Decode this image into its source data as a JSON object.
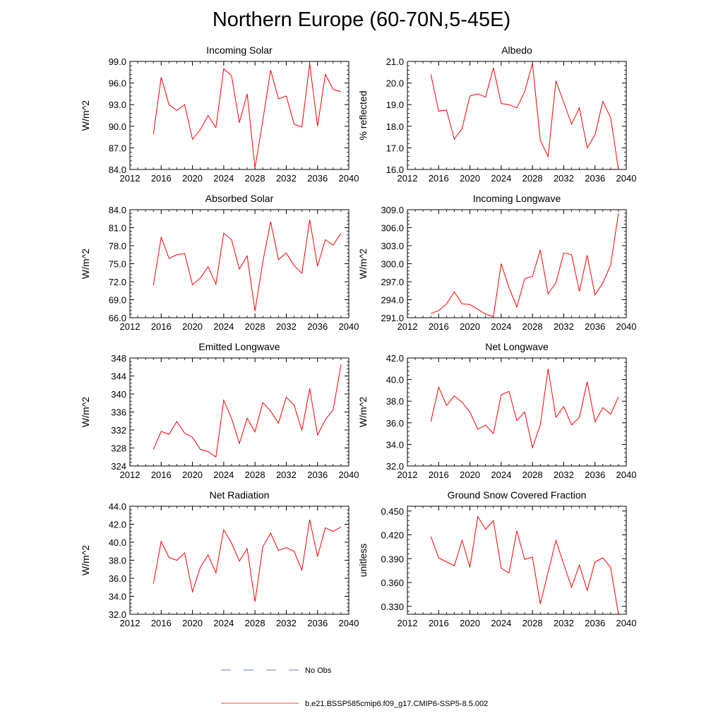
{
  "title": "Northern Europe (60-70N,5-45E)",
  "colors": {
    "model": "#ff0000",
    "obs": "#3355cc",
    "axis": "#000000"
  },
  "legend": [
    {
      "label": "No Obs",
      "style": "dashed",
      "color": "#3355cc"
    },
    {
      "label": "b.e21.BSSP585cmip6.f09_g17.CMIP6-SSP5-8.5.002",
      "style": "solid",
      "color": "#ff0000"
    }
  ],
  "chart_data": [
    {
      "type": "line",
      "title": "Incoming Solar",
      "ylabel": "W/m^2",
      "xlim": [
        2012,
        2040
      ],
      "xticks": [
        "2012",
        "2016",
        "2020",
        "2024",
        "2028",
        "2032",
        "2036",
        "2040"
      ],
      "ylim": [
        84.0,
        99.0
      ],
      "yticks": [
        "84.0",
        "87.0",
        "90.0",
        "93.0",
        "96.0",
        "99.0"
      ],
      "x": [
        2015,
        2016,
        2017,
        2018,
        2019,
        2020,
        2021,
        2022,
        2023,
        2024,
        2025,
        2026,
        2027,
        2028,
        2029,
        2030,
        2031,
        2032,
        2033,
        2034,
        2035,
        2036,
        2037,
        2038,
        2039
      ],
      "values": [
        88.9,
        96.8,
        93.0,
        92.2,
        93.0,
        88.2,
        89.5,
        91.5,
        89.8,
        98.0,
        97.0,
        90.5,
        94.5,
        84.2,
        90.8,
        97.8,
        93.8,
        94.2,
        90.3,
        89.9,
        98.7,
        90.0,
        97.2,
        95.1,
        94.8
      ]
    },
    {
      "type": "line",
      "title": "Albedo",
      "ylabel": "% reflected",
      "xlim": [
        2012,
        2040
      ],
      "xticks": [
        "2012",
        "2016",
        "2020",
        "2024",
        "2028",
        "2032",
        "2036",
        "2040"
      ],
      "ylim": [
        16.0,
        21.0
      ],
      "yticks": [
        "16.0",
        "17.0",
        "18.0",
        "19.0",
        "20.0",
        "21.0"
      ],
      "x": [
        2015,
        2016,
        2017,
        2018,
        2019,
        2020,
        2021,
        2022,
        2023,
        2024,
        2025,
        2026,
        2027,
        2028,
        2029,
        2030,
        2031,
        2032,
        2033,
        2034,
        2035,
        2036,
        2037,
        2038,
        2039
      ],
      "values": [
        20.4,
        18.7,
        18.75,
        17.4,
        17.9,
        19.4,
        19.5,
        19.35,
        20.7,
        19.05,
        19.0,
        18.85,
        19.6,
        20.9,
        17.35,
        16.6,
        20.1,
        19.1,
        18.1,
        18.85,
        17.0,
        17.6,
        19.15,
        18.4,
        16.0
      ]
    },
    {
      "type": "line",
      "title": "Absorbed Solar",
      "ylabel": "W/m^2",
      "xlim": [
        2012,
        2040
      ],
      "xticks": [
        "2012",
        "2016",
        "2020",
        "2024",
        "2028",
        "2032",
        "2036",
        "2040"
      ],
      "ylim": [
        66.0,
        84.0
      ],
      "yticks": [
        "66.0",
        "69.0",
        "72.0",
        "75.0",
        "78.0",
        "81.0",
        "84.0"
      ],
      "x": [
        2015,
        2016,
        2017,
        2018,
        2019,
        2020,
        2021,
        2022,
        2023,
        2024,
        2025,
        2026,
        2027,
        2028,
        2029,
        2030,
        2031,
        2032,
        2033,
        2034,
        2035,
        2036,
        2037,
        2038,
        2039
      ],
      "values": [
        71.4,
        79.4,
        75.9,
        76.5,
        76.7,
        71.5,
        72.6,
        74.5,
        71.6,
        80.1,
        79.0,
        74.1,
        76.3,
        67.1,
        75.3,
        82.0,
        75.7,
        76.8,
        74.7,
        73.4,
        82.3,
        74.6,
        79.0,
        78.1,
        80.1
      ]
    },
    {
      "type": "line",
      "title": "Incoming Longwave",
      "ylabel": "W/m^2",
      "xlim": [
        2012,
        2040
      ],
      "xticks": [
        "2012",
        "2016",
        "2020",
        "2024",
        "2028",
        "2032",
        "2036",
        "2040"
      ],
      "ylim": [
        291.0,
        309.0
      ],
      "yticks": [
        "291.0",
        "294.0",
        "297.0",
        "300.0",
        "303.0",
        "306.0",
        "309.0"
      ],
      "x": [
        2015,
        2016,
        2017,
        2018,
        2019,
        2020,
        2021,
        2022,
        2023,
        2024,
        2025,
        2026,
        2027,
        2028,
        2029,
        2030,
        2031,
        2032,
        2033,
        2034,
        2035,
        2036,
        2037,
        2038,
        2039
      ],
      "values": [
        291.7,
        292.2,
        293.3,
        295.3,
        293.3,
        293.2,
        292.4,
        291.6,
        291.2,
        300.0,
        296.0,
        292.8,
        297.5,
        297.9,
        302.3,
        295.0,
        296.8,
        301.8,
        301.5,
        295.4,
        301.4,
        294.8,
        296.8,
        299.8,
        308.4
      ]
    },
    {
      "type": "line",
      "title": "Emitted Longwave",
      "ylabel": "W/m^2",
      "xlim": [
        2012,
        2040
      ],
      "xticks": [
        "2012",
        "2016",
        "2020",
        "2024",
        "2028",
        "2032",
        "2036",
        "2040"
      ],
      "ylim": [
        324,
        348
      ],
      "yticks": [
        "324",
        "328",
        "332",
        "336",
        "340",
        "344",
        "348"
      ],
      "x": [
        2015,
        2016,
        2017,
        2018,
        2019,
        2020,
        2021,
        2022,
        2023,
        2024,
        2025,
        2026,
        2027,
        2028,
        2029,
        2030,
        2031,
        2032,
        2033,
        2034,
        2035,
        2036,
        2037,
        2038,
        2039
      ],
      "values": [
        327.7,
        331.7,
        331.0,
        333.9,
        331.3,
        330.4,
        327.7,
        327.2,
        326.0,
        338.6,
        334.6,
        329.0,
        334.6,
        331.6,
        338.1,
        336.2,
        333.5,
        339.3,
        337.5,
        331.9,
        341.2,
        330.9,
        334.3,
        336.5,
        346.5
      ]
    },
    {
      "type": "line",
      "title": "Net Longwave",
      "ylabel": "W/m^2",
      "xlim": [
        2012,
        2040
      ],
      "xticks": [
        "2012",
        "2016",
        "2020",
        "2024",
        "2028",
        "2032",
        "2036",
        "2040"
      ],
      "ylim": [
        32.0,
        42.0
      ],
      "yticks": [
        "32.0",
        "34.0",
        "36.0",
        "38.0",
        "40.0",
        "42.0"
      ],
      "x": [
        2015,
        2016,
        2017,
        2018,
        2019,
        2020,
        2021,
        2022,
        2023,
        2024,
        2025,
        2026,
        2027,
        2028,
        2029,
        2030,
        2031,
        2032,
        2033,
        2034,
        2035,
        2036,
        2037,
        2038,
        2039
      ],
      "values": [
        36.1,
        39.3,
        37.6,
        38.5,
        37.9,
        37.0,
        35.4,
        35.8,
        35.0,
        38.6,
        38.9,
        36.2,
        37.0,
        33.7,
        35.8,
        41.0,
        36.5,
        37.5,
        35.8,
        36.5,
        39.8,
        36.1,
        37.4,
        36.8,
        38.4
      ]
    },
    {
      "type": "line",
      "title": "Net Radiation",
      "ylabel": "W/m^2",
      "xlim": [
        2012,
        2040
      ],
      "xticks": [
        "2012",
        "2016",
        "2020",
        "2024",
        "2028",
        "2032",
        "2036",
        "2040"
      ],
      "ylim": [
        32.0,
        44.0
      ],
      "yticks": [
        "32.0",
        "34.0",
        "36.0",
        "38.0",
        "40.0",
        "42.0",
        "44.0"
      ],
      "x": [
        2015,
        2016,
        2017,
        2018,
        2019,
        2020,
        2021,
        2022,
        2023,
        2024,
        2025,
        2026,
        2027,
        2028,
        2029,
        2030,
        2031,
        2032,
        2033,
        2034,
        2035,
        2036,
        2037,
        2038,
        2039
      ],
      "values": [
        35.4,
        40.1,
        38.3,
        38.0,
        38.8,
        34.5,
        37.2,
        38.6,
        36.6,
        41.4,
        39.9,
        37.9,
        39.3,
        33.4,
        39.5,
        41.0,
        39.1,
        39.4,
        39.0,
        36.9,
        42.5,
        38.4,
        41.6,
        41.2,
        41.7
      ]
    },
    {
      "type": "line",
      "title": "Ground Snow Covered Fraction",
      "ylabel": "unitless",
      "xlim": [
        2012,
        2040
      ],
      "xticks": [
        "2012",
        "2016",
        "2020",
        "2024",
        "2028",
        "2032",
        "2036",
        "2040"
      ],
      "ylim": [
        0.32,
        0.456
      ],
      "yticks": [
        "0.330",
        "0.360",
        "0.390",
        "0.420",
        "0.450"
      ],
      "x": [
        2015,
        2016,
        2017,
        2018,
        2019,
        2020,
        2021,
        2022,
        2023,
        2024,
        2025,
        2026,
        2027,
        2028,
        2029,
        2030,
        2031,
        2032,
        2033,
        2034,
        2035,
        2036,
        2037,
        2038,
        2039
      ],
      "values": [
        0.418,
        0.391,
        0.386,
        0.381,
        0.413,
        0.379,
        0.443,
        0.427,
        0.438,
        0.378,
        0.372,
        0.425,
        0.389,
        0.392,
        0.333,
        0.373,
        0.413,
        0.383,
        0.354,
        0.382,
        0.35,
        0.386,
        0.391,
        0.379,
        0.32
      ]
    }
  ]
}
